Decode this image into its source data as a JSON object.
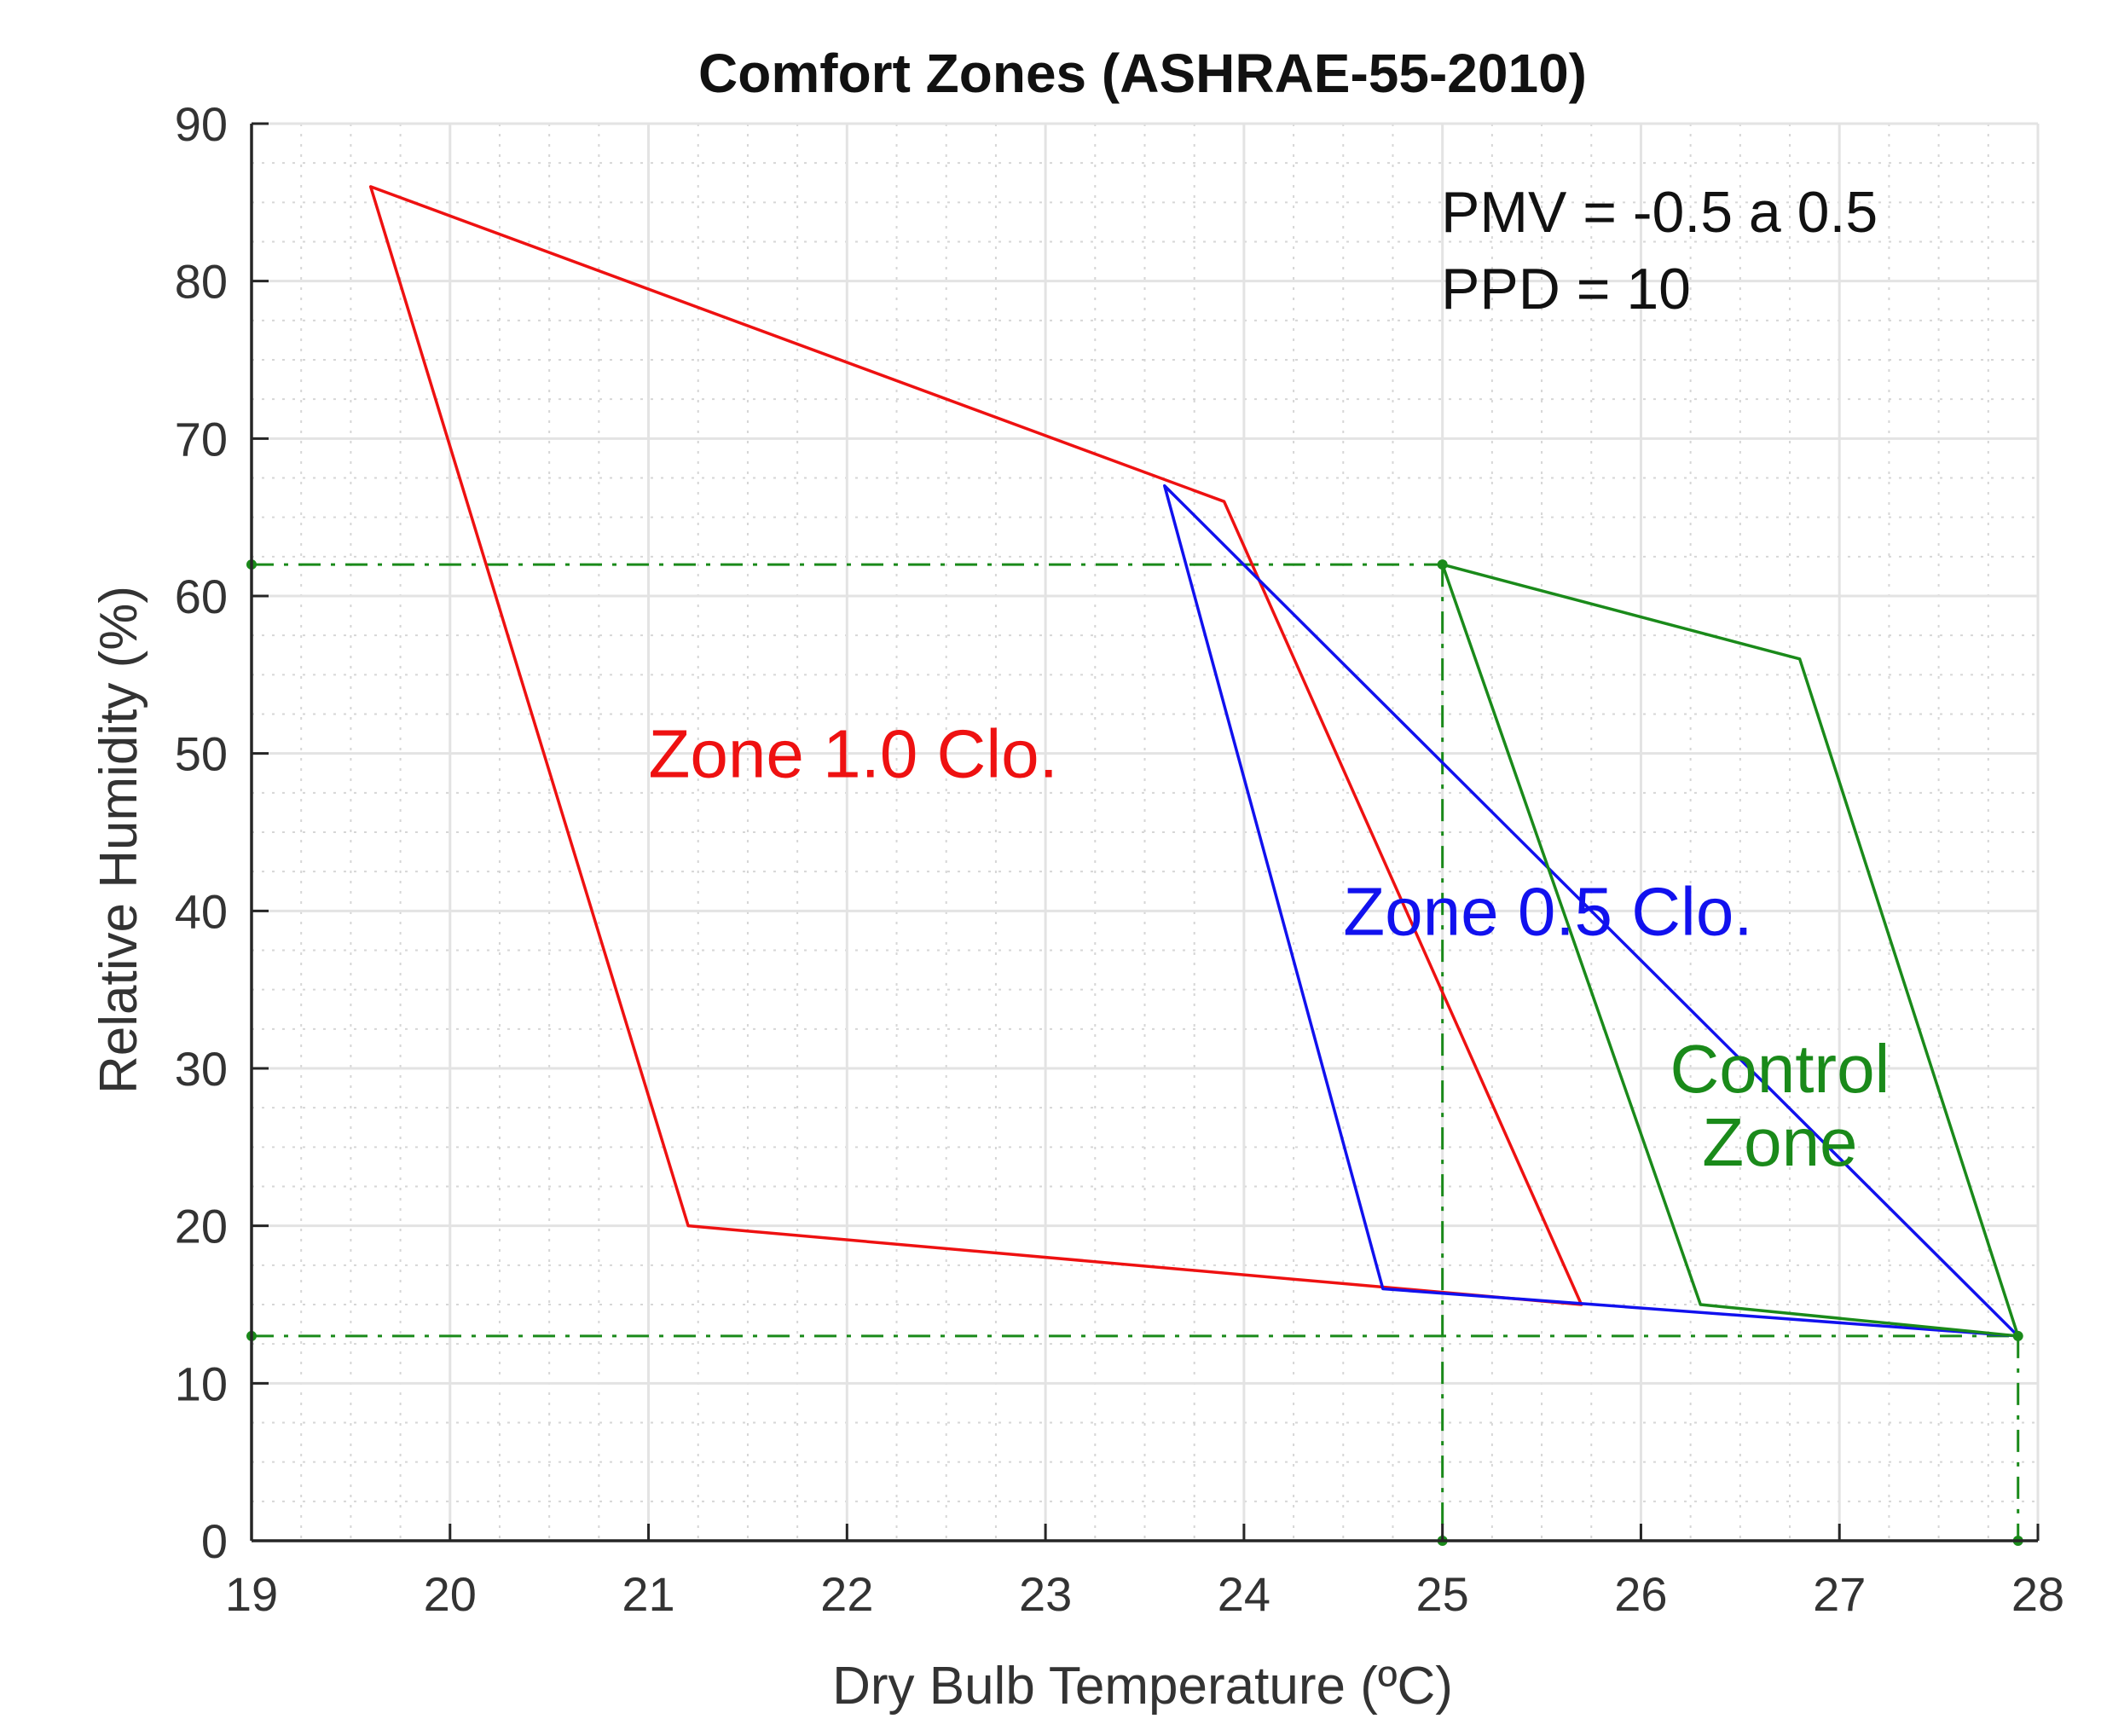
{
  "chart_data": {
    "type": "line",
    "title": "Comfort Zones (ASHRAE-55-2010)",
    "xlabel": "Dry Bulb Temperature (ºC)",
    "ylabel": "Relative Humidity (%)",
    "xlim": [
      19,
      28
    ],
    "ylim": [
      0,
      90
    ],
    "xticks": [
      19,
      20,
      21,
      22,
      23,
      24,
      25,
      26,
      27,
      28
    ],
    "yticks": [
      0,
      10,
      20,
      30,
      40,
      50,
      60,
      70,
      80,
      90
    ],
    "grid": true,
    "annotations": [
      "PMV = -0.5 a 0.5",
      "PPD = 10"
    ],
    "series": [
      {
        "name": "Zone 1.0 Clo.",
        "label_lines": [
          "Zone 1.0 Clo."
        ],
        "color": "#ee1111",
        "closed": true,
        "points": [
          [
            19.6,
            86
          ],
          [
            23.9,
            66
          ],
          [
            25.7,
            15
          ],
          [
            21.2,
            20
          ]
        ],
        "label_anchor": [
          21.0,
          50
        ]
      },
      {
        "name": "Zone 0.5 Clo.",
        "label_lines": [
          "Zone 0.5 Clo."
        ],
        "color": "#1111ee",
        "closed": true,
        "points": [
          [
            23.6,
            67
          ],
          [
            27.9,
            13
          ],
          [
            24.7,
            16
          ]
        ],
        "label_anchor": [
          24.5,
          40
        ]
      },
      {
        "name": "Control Zone",
        "label_lines": [
          "Control",
          "Zone"
        ],
        "color": "#1a8a1a",
        "closed": true,
        "points": [
          [
            25.0,
            62
          ],
          [
            26.8,
            56
          ],
          [
            27.9,
            13
          ],
          [
            26.3,
            15
          ]
        ],
        "label_anchor": [
          26.7,
          30
        ]
      }
    ],
    "reference_lines": {
      "color": "#1a8a1a",
      "style": "dash-dot",
      "horizontal": [
        62,
        13
      ],
      "vertical": [
        25,
        27.9
      ]
    },
    "reference_markers": [
      [
        19,
        62
      ],
      [
        19,
        13
      ],
      [
        25,
        0
      ],
      [
        27.9,
        0
      ]
    ]
  }
}
